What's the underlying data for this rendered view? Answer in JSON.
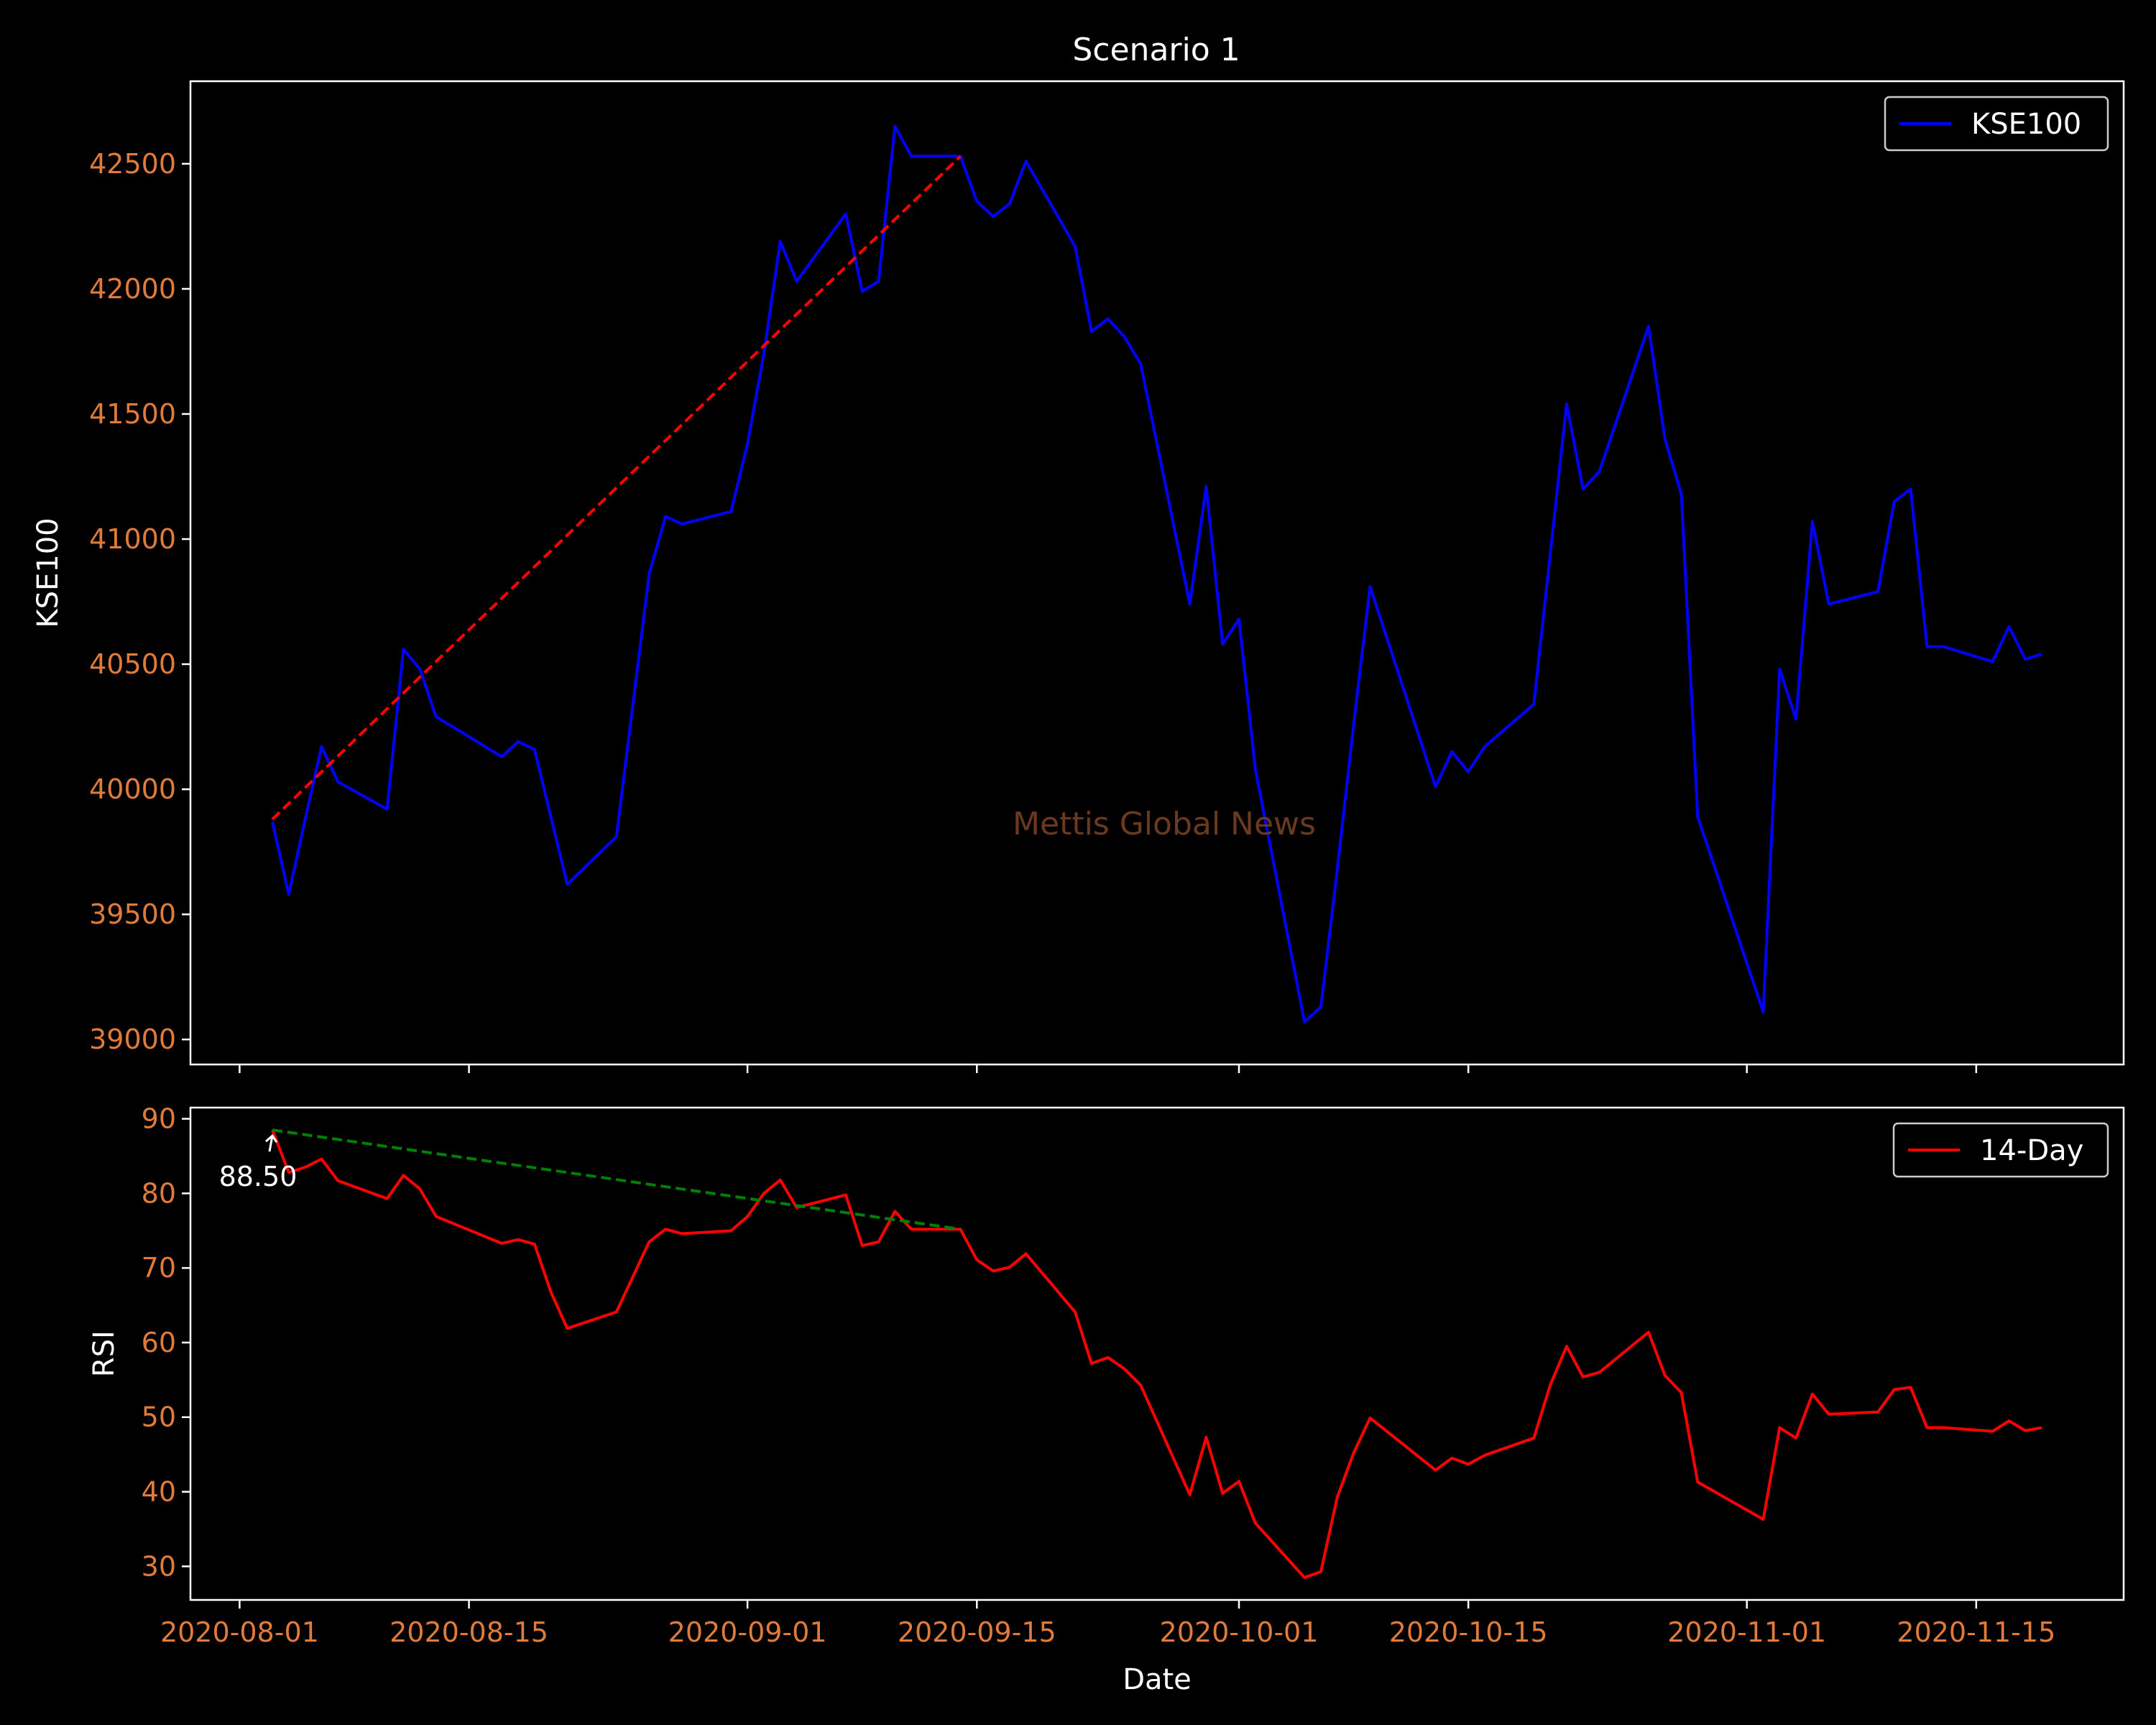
{
  "figure": {
    "title": "Scenario 1",
    "watermark": "Mettis Global News",
    "background": "#000000",
    "tick_label_color": "#e07b39",
    "text_color": "#ffffff",
    "axis_color": "#ffffff"
  },
  "chart_data": [
    {
      "type": "line",
      "title": "Scenario 1",
      "xlabel": "",
      "ylabel": "KSE100",
      "xlim": [
        "2020-07-29",
        "2020-11-24"
      ],
      "ylim": [
        38900,
        42830
      ],
      "x_ticks": [
        "2020-08-01",
        "2020-08-15",
        "2020-09-01",
        "2020-09-15",
        "2020-10-01",
        "2020-10-15",
        "2020-11-01",
        "2020-11-15"
      ],
      "x_tick_labels_visible": false,
      "y_ticks": [
        39000,
        39500,
        40000,
        40500,
        41000,
        41500,
        42000,
        42500
      ],
      "y_tick_labels": [
        "39000",
        "39500",
        "40000",
        "40500",
        "41000",
        "41500",
        "42000",
        "42500"
      ],
      "grid": false,
      "legend": "top-right",
      "series": [
        {
          "name": "KSE100",
          "color": "#0000ff",
          "points": [
            [
              "2020-08-03",
              39870
            ],
            [
              "2020-08-04",
              39580
            ],
            [
              "2020-08-05",
              39880
            ],
            [
              "2020-08-06",
              40170
            ],
            [
              "2020-08-07",
              40030
            ],
            [
              "2020-08-10",
              39920
            ],
            [
              "2020-08-11",
              40560
            ],
            [
              "2020-08-12",
              40480
            ],
            [
              "2020-08-13",
              40290
            ],
            [
              "2020-08-17",
              40130
            ],
            [
              "2020-08-18",
              40190
            ],
            [
              "2020-08-19",
              40160
            ],
            [
              "2020-08-20",
              39890
            ],
            [
              "2020-08-21",
              39620
            ],
            [
              "2020-08-24",
              39810
            ],
            [
              "2020-08-26",
              40860
            ],
            [
              "2020-08-27",
              41090
            ],
            [
              "2020-08-28",
              41060
            ],
            [
              "2020-08-31",
              41110
            ],
            [
              "2020-09-01",
              41380
            ],
            [
              "2020-09-02",
              41740
            ],
            [
              "2020-09-03",
              42190
            ],
            [
              "2020-09-04",
              42030
            ],
            [
              "2020-09-07",
              42300
            ],
            [
              "2020-09-08",
              41990
            ],
            [
              "2020-09-09",
              42030
            ],
            [
              "2020-09-10",
              42650
            ],
            [
              "2020-09-11",
              42530
            ],
            [
              "2020-09-14",
              42530
            ],
            [
              "2020-09-15",
              42350
            ],
            [
              "2020-09-16",
              42290
            ],
            [
              "2020-09-17",
              42340
            ],
            [
              "2020-09-18",
              42510
            ],
            [
              "2020-09-21",
              42170
            ],
            [
              "2020-09-22",
              41830
            ],
            [
              "2020-09-23",
              41880
            ],
            [
              "2020-09-24",
              41810
            ],
            [
              "2020-09-25",
              41700
            ],
            [
              "2020-09-28",
              40740
            ],
            [
              "2020-09-29",
              41210
            ],
            [
              "2020-09-30",
              40580
            ],
            [
              "2020-10-01",
              40680
            ],
            [
              "2020-10-02",
              40080
            ],
            [
              "2020-10-05",
              39070
            ],
            [
              "2020-10-06",
              39130
            ],
            [
              "2020-10-07",
              39680
            ],
            [
              "2020-10-08",
              40260
            ],
            [
              "2020-10-09",
              40810
            ],
            [
              "2020-10-13",
              40010
            ],
            [
              "2020-10-14",
              40150
            ],
            [
              "2020-10-15",
              40070
            ],
            [
              "2020-10-16",
              40170
            ],
            [
              "2020-10-19",
              40340
            ],
            [
              "2020-10-21",
              41540
            ],
            [
              "2020-10-22",
              41200
            ],
            [
              "2020-10-23",
              41270
            ],
            [
              "2020-10-26",
              41850
            ],
            [
              "2020-10-27",
              41400
            ],
            [
              "2020-10-28",
              41180
            ],
            [
              "2020-10-29",
              39890
            ],
            [
              "2020-11-02",
              39110
            ],
            [
              "2020-11-03",
              40480
            ],
            [
              "2020-11-04",
              40280
            ],
            [
              "2020-11-05",
              41070
            ],
            [
              "2020-11-06",
              40740
            ],
            [
              "2020-11-09",
              40790
            ],
            [
              "2020-11-10",
              41150
            ],
            [
              "2020-11-11",
              41200
            ],
            [
              "2020-11-12",
              40570
            ],
            [
              "2020-11-13",
              40570
            ],
            [
              "2020-11-16",
              40510
            ],
            [
              "2020-11-17",
              40650
            ],
            [
              "2020-11-18",
              40520
            ],
            [
              "2020-11-19",
              40540
            ]
          ]
        }
      ],
      "trendline": {
        "color": "#ff0000",
        "style": "dashed",
        "points": [
          [
            "2020-08-03",
            39880
          ],
          [
            "2020-09-14",
            42530
          ]
        ]
      }
    },
    {
      "type": "line",
      "title": "",
      "xlabel": "Date",
      "ylabel": "RSI",
      "xlim": [
        "2020-07-29",
        "2020-11-24"
      ],
      "ylim": [
        25.5,
        91.5
      ],
      "x_ticks": [
        "2020-08-01",
        "2020-08-15",
        "2020-09-01",
        "2020-09-15",
        "2020-10-01",
        "2020-10-15",
        "2020-11-01",
        "2020-11-15"
      ],
      "x_tick_labels": [
        "2020-08-01",
        "2020-08-15",
        "2020-09-01",
        "2020-09-15",
        "2020-10-01",
        "2020-10-15",
        "2020-11-01",
        "2020-11-15"
      ],
      "y_ticks": [
        30,
        40,
        50,
        60,
        70,
        80,
        90
      ],
      "y_tick_labels": [
        "30",
        "40",
        "50",
        "60",
        "70",
        "80",
        "90"
      ],
      "grid": false,
      "legend": "top-right",
      "series": [
        {
          "name": "14-Day",
          "color": "#ff0000",
          "points": [
            [
              "2020-08-03",
              88.5
            ],
            [
              "2020-08-04",
              82.8
            ],
            [
              "2020-08-05",
              83.5
            ],
            [
              "2020-08-06",
              84.6
            ],
            [
              "2020-08-07",
              81.7
            ],
            [
              "2020-08-10",
              79.3
            ],
            [
              "2020-08-11",
              82.4
            ],
            [
              "2020-08-12",
              80.6
            ],
            [
              "2020-08-13",
              76.9
            ],
            [
              "2020-08-17",
              73.3
            ],
            [
              "2020-08-18",
              73.8
            ],
            [
              "2020-08-19",
              73.2
            ],
            [
              "2020-08-20",
              66.8
            ],
            [
              "2020-08-21",
              61.9
            ],
            [
              "2020-08-24",
              64.1
            ],
            [
              "2020-08-26",
              73.5
            ],
            [
              "2020-08-27",
              75.2
            ],
            [
              "2020-08-28",
              74.6
            ],
            [
              "2020-08-31",
              75.0
            ],
            [
              "2020-09-01",
              76.9
            ],
            [
              "2020-09-02",
              80.0
            ],
            [
              "2020-09-03",
              81.8
            ],
            [
              "2020-09-04",
              78.1
            ],
            [
              "2020-09-07",
              79.8
            ],
            [
              "2020-09-08",
              73.0
            ],
            [
              "2020-09-09",
              73.5
            ],
            [
              "2020-09-10",
              77.6
            ],
            [
              "2020-09-11",
              75.2
            ],
            [
              "2020-09-14",
              75.2
            ],
            [
              "2020-09-15",
              71.1
            ],
            [
              "2020-09-16",
              69.6
            ],
            [
              "2020-09-17",
              70.1
            ],
            [
              "2020-09-18",
              71.9
            ],
            [
              "2020-09-21",
              64.1
            ],
            [
              "2020-09-22",
              57.2
            ],
            [
              "2020-09-23",
              58.0
            ],
            [
              "2020-09-24",
              56.5
            ],
            [
              "2020-09-25",
              54.3
            ],
            [
              "2020-09-28",
              39.6
            ],
            [
              "2020-09-29",
              47.3
            ],
            [
              "2020-09-30",
              39.8
            ],
            [
              "2020-10-01",
              41.4
            ],
            [
              "2020-10-02",
              35.8
            ],
            [
              "2020-10-05",
              28.5
            ],
            [
              "2020-10-06",
              29.3
            ],
            [
              "2020-10-07",
              39.3
            ],
            [
              "2020-10-08",
              45.2
            ],
            [
              "2020-10-09",
              49.9
            ],
            [
              "2020-10-13",
              42.9
            ],
            [
              "2020-10-14",
              44.5
            ],
            [
              "2020-10-15",
              43.7
            ],
            [
              "2020-10-16",
              44.9
            ],
            [
              "2020-10-19",
              47.2
            ],
            [
              "2020-10-20",
              54.3
            ],
            [
              "2020-10-21",
              59.5
            ],
            [
              "2020-10-22",
              55.4
            ],
            [
              "2020-10-23",
              56.0
            ],
            [
              "2020-10-26",
              61.4
            ],
            [
              "2020-10-27",
              55.6
            ],
            [
              "2020-10-28",
              53.3
            ],
            [
              "2020-10-29",
              41.3
            ],
            [
              "2020-11-02",
              36.3
            ],
            [
              "2020-11-03",
              48.6
            ],
            [
              "2020-11-04",
              47.2
            ],
            [
              "2020-11-05",
              53.1
            ],
            [
              "2020-11-06",
              50.4
            ],
            [
              "2020-11-09",
              50.7
            ],
            [
              "2020-11-10",
              53.7
            ],
            [
              "2020-11-11",
              54.0
            ],
            [
              "2020-11-12",
              48.6
            ],
            [
              "2020-11-13",
              48.6
            ],
            [
              "2020-11-16",
              48.1
            ],
            [
              "2020-11-17",
              49.5
            ],
            [
              "2020-11-18",
              48.2
            ],
            [
              "2020-11-19",
              48.6
            ]
          ]
        }
      ],
      "trendline": {
        "color": "#008000",
        "style": "dashed",
        "points": [
          [
            "2020-08-03",
            88.5
          ],
          [
            "2020-09-14",
            75.2
          ]
        ]
      },
      "annotation": {
        "text": "88.50",
        "color": "#ffffff",
        "x": "2020-08-03",
        "y": 88.5
      }
    }
  ]
}
